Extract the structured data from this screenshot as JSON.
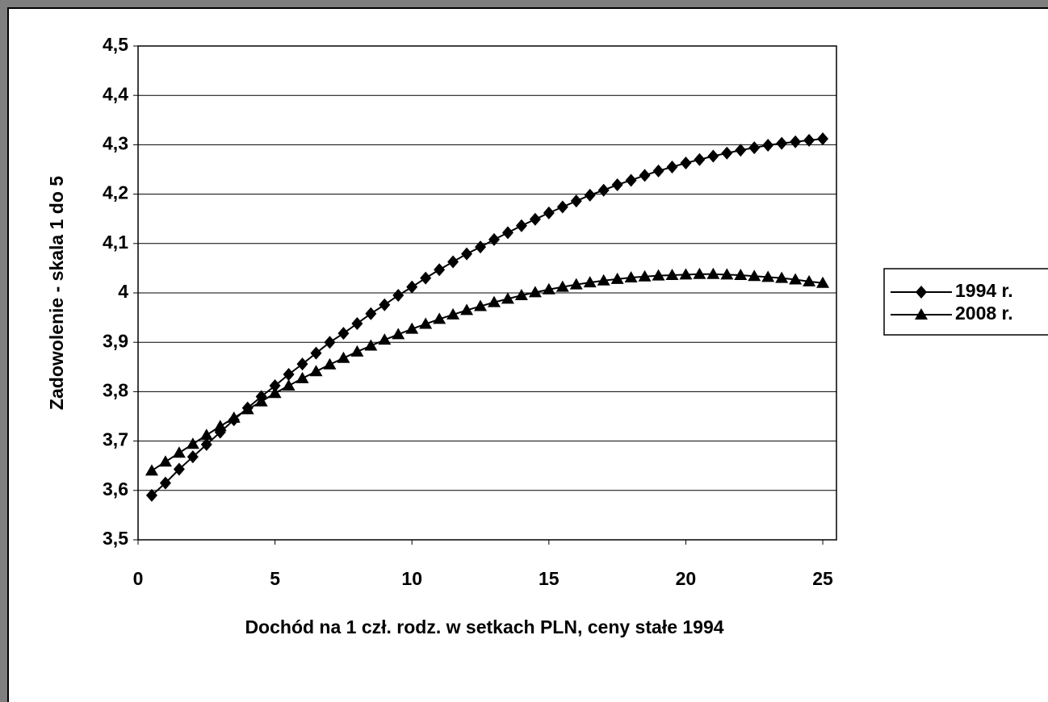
{
  "chart_data": {
    "type": "line",
    "x_label": "Dochód na 1 czł. rodz. w setkach PLN, ceny stałe 1994",
    "y_label": "Zadowolenie - skala 1 do 5",
    "x": [
      0.5,
      1,
      1.5,
      2,
      2.5,
      3,
      3.5,
      4,
      4.5,
      5,
      5.5,
      6,
      6.5,
      7,
      7.5,
      8,
      8.5,
      9,
      9.5,
      10,
      10.5,
      11,
      11.5,
      12,
      12.5,
      13,
      13.5,
      14,
      14.5,
      15,
      15.5,
      16,
      16.5,
      17,
      17.5,
      18,
      18.5,
      19,
      19.5,
      20,
      20.5,
      21,
      21.5,
      22,
      22.5,
      23,
      23.5,
      24,
      24.5,
      25
    ],
    "series": [
      {
        "name": "1994 r.",
        "color": "#000000",
        "marker": "diamond",
        "values": [
          3.59,
          3.615,
          3.643,
          3.668,
          3.693,
          3.718,
          3.743,
          3.767,
          3.79,
          3.812,
          3.835,
          3.856,
          3.878,
          3.9,
          3.918,
          3.938,
          3.958,
          3.976,
          3.995,
          4.012,
          4.03,
          4.047,
          4.063,
          4.079,
          4.093,
          4.108,
          4.122,
          4.136,
          4.149,
          4.162,
          4.174,
          4.186,
          4.198,
          4.208,
          4.219,
          4.228,
          4.238,
          4.247,
          4.255,
          4.263,
          4.27,
          4.277,
          4.283,
          4.289,
          4.294,
          4.299,
          4.303,
          4.306,
          4.309,
          4.312
        ]
      },
      {
        "name": "2008 r.",
        "color": "#000000",
        "marker": "triangle",
        "values": [
          3.64,
          3.658,
          3.676,
          3.694,
          3.712,
          3.73,
          3.747,
          3.764,
          3.78,
          3.797,
          3.812,
          3.827,
          3.841,
          3.855,
          3.868,
          3.881,
          3.893,
          3.905,
          3.916,
          3.927,
          3.937,
          3.947,
          3.956,
          3.965,
          3.973,
          3.981,
          3.988,
          3.995,
          4.001,
          4.007,
          4.012,
          4.017,
          4.021,
          4.025,
          4.028,
          4.031,
          4.033,
          4.035,
          4.036,
          4.037,
          4.038,
          4.038,
          4.037,
          4.036,
          4.034,
          4.032,
          4.03,
          4.027,
          4.023,
          4.02
        ]
      }
    ],
    "xlim": [
      0,
      25.5
    ],
    "xticks": [
      0,
      5,
      10,
      15,
      20,
      25
    ],
    "ylim": [
      3.5,
      4.5
    ],
    "yticks": [
      {
        "value": 3.5,
        "label": "3,5"
      },
      {
        "value": 3.6,
        "label": "3,6"
      },
      {
        "value": 3.7,
        "label": "3,7"
      },
      {
        "value": 3.8,
        "label": "3,8"
      },
      {
        "value": 3.9,
        "label": "3,9"
      },
      4,
      {
        "value": 4.1,
        "label": "4,1"
      },
      {
        "value": 4.2,
        "label": "4,2"
      },
      {
        "value": 4.3,
        "label": "4,3"
      },
      {
        "value": 4.4,
        "label": "4,4"
      },
      {
        "value": 4.5,
        "label": "4,5"
      }
    ],
    "grid": true,
    "legend": "right"
  }
}
